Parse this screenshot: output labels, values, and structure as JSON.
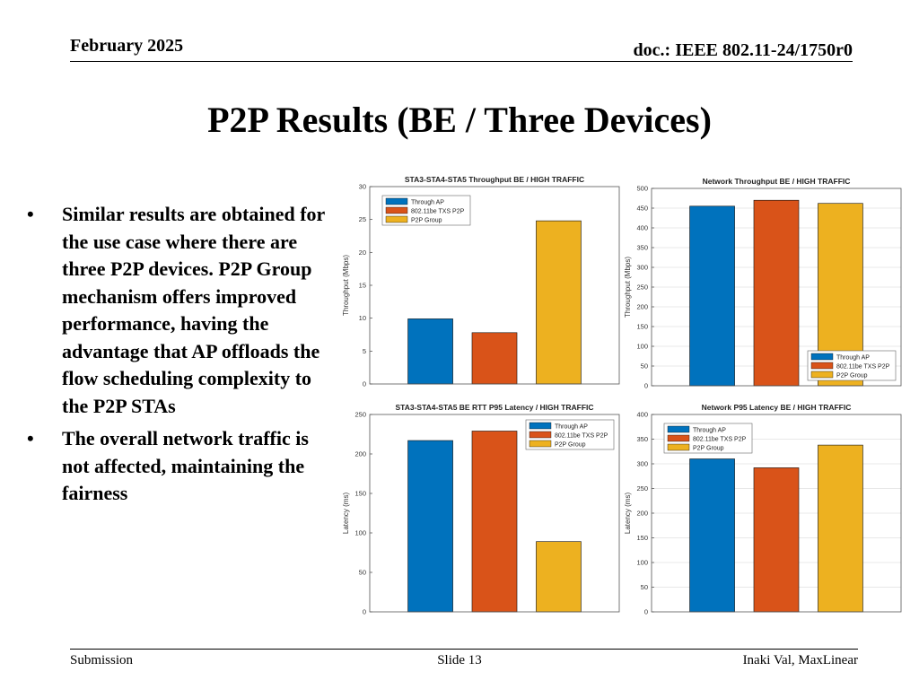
{
  "header": {
    "date": "February 2025",
    "doc": "doc.: IEEE 802.11-24/1750r0"
  },
  "title": "P2P Results (BE / Three Devices)",
  "bullets": [
    "Similar results are obtained for the use case where there are three P2P devices. P2P Group mechanism offers improved performance, having the advantage that AP offloads the flow scheduling complexity to the P2P STAs",
    "The overall network traffic is not affected, maintaining the fairness"
  ],
  "bullet_symbol": "•",
  "footer": {
    "left": "Submission",
    "center": "Slide 13",
    "right": "Inaki Val, MaxLinear"
  },
  "colors": {
    "through_ap": "#0072BD",
    "txs_p2p": "#D95319",
    "p2p_group": "#EDB120"
  },
  "chart_data": [
    {
      "type": "bar",
      "title": "STA3-STA4-STA5 Throughput BE / HIGH TRAFFIC",
      "ylabel": "Throughput (Mbps)",
      "xlabel": "",
      "ylim": [
        0,
        30
      ],
      "yticks": [
        0,
        5,
        10,
        15,
        20,
        25,
        30
      ],
      "categories": [
        "Through AP",
        "802.11be TXS P2P",
        "P2P Group"
      ],
      "values": [
        9.9,
        7.8,
        24.8
      ],
      "legend": [
        "Through AP",
        "802.11be TXS P2P",
        "P2P Group"
      ],
      "legend_position": "top-left",
      "grid": false
    },
    {
      "type": "bar",
      "title": "Network Throughput BE / HIGH TRAFFIC",
      "ylabel": "Throughput (Mbps)",
      "xlabel": "",
      "ylim": [
        0,
        500
      ],
      "yticks": [
        0,
        50,
        100,
        150,
        200,
        250,
        300,
        350,
        400,
        450,
        500
      ],
      "categories": [
        "Through AP",
        "802.11be TXS P2P",
        "P2P Group"
      ],
      "values": [
        455,
        470,
        462
      ],
      "legend": [
        "Through AP",
        "802.11be TXS P2P",
        "P2P Group"
      ],
      "legend_position": "bottom-right",
      "grid": true
    },
    {
      "type": "bar",
      "title": "STA3-STA4-STA5 BE RTT P95 Latency / HIGH TRAFFIC",
      "ylabel": "Latency (ms)",
      "xlabel": "",
      "ylim": [
        0,
        250
      ],
      "yticks": [
        0,
        50,
        100,
        150,
        200,
        250
      ],
      "categories": [
        "Through AP",
        "802.11be TXS P2P",
        "P2P Group"
      ],
      "values": [
        217,
        229,
        89
      ],
      "legend": [
        "Through AP",
        "802.11be TXS P2P",
        "P2P Group"
      ],
      "legend_position": "top-right",
      "grid": false
    },
    {
      "type": "bar",
      "title": "Network P95 Latency BE / HIGH TRAFFIC",
      "ylabel": "Latency (ms)",
      "xlabel": "",
      "ylim": [
        0,
        400
      ],
      "yticks": [
        0,
        50,
        100,
        150,
        200,
        250,
        300,
        350,
        400
      ],
      "categories": [
        "Through AP",
        "802.11be TXS P2P",
        "P2P Group"
      ],
      "values": [
        310,
        292,
        338
      ],
      "legend": [
        "Through AP",
        "802.11be TXS P2P",
        "P2P Group"
      ],
      "legend_position": "top-left",
      "grid": true
    }
  ]
}
